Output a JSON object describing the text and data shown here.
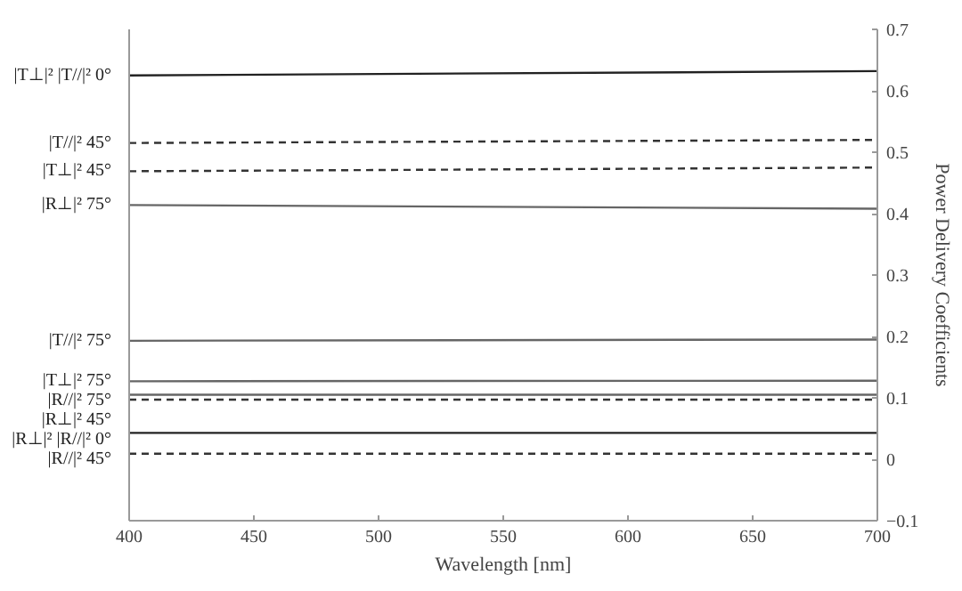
{
  "chart_data": {
    "type": "line",
    "xlabel": "Wavelength [nm]",
    "ylabel": "Power Delivery Coefficients",
    "x": [
      400,
      700
    ],
    "xlim": [
      400,
      700
    ],
    "xticks": [
      400,
      450,
      500,
      550,
      600,
      650,
      700
    ],
    "ylim": [
      -0.1,
      0.7
    ],
    "yticks": [
      -0.1,
      0,
      0.1,
      0.2,
      0.3,
      0.4,
      0.5,
      0.6,
      0.7
    ],
    "grid": false,
    "marker": "none",
    "series": [
      {
        "name": "|T⊥|² |T//|² 0°",
        "color": "#222222",
        "values": [
          0.625,
          0.632
        ],
        "line_style": "solid"
      },
      {
        "name": "|T//|² 45°",
        "color": "#333333",
        "values": [
          0.515,
          0.52
        ],
        "line_style": "dashed"
      },
      {
        "name": "|T⊥|² 45°",
        "color": "#333333",
        "values": [
          0.469,
          0.475
        ],
        "line_style": "dashed"
      },
      {
        "name": "|R⊥|² 75°",
        "color": "#666666",
        "values": [
          0.414,
          0.408
        ],
        "line_style": "solid"
      },
      {
        "name": "|T//|² 75°",
        "color": "#666666",
        "values": [
          0.193,
          0.195
        ],
        "line_style": "solid"
      },
      {
        "name": "|T⊥|² 75°",
        "color": "#666666",
        "values": [
          0.127,
          0.128
        ],
        "line_style": "solid"
      },
      {
        "name": "|R//|² 75°",
        "color": "#666666",
        "values": [
          0.105,
          0.105
        ],
        "line_style": "solid"
      },
      {
        "name": "|R⊥|² 45°",
        "color": "#333333",
        "values": [
          0.097,
          0.097
        ],
        "line_style": "dashed"
      },
      {
        "name": "|R⊥|² |R//|² 0°",
        "color": "#222222",
        "values": [
          0.043,
          0.043
        ],
        "line_style": "solid"
      },
      {
        "name": "|R//|² 45°",
        "color": "#333333",
        "values": [
          0.009,
          0.009
        ],
        "line_style": "dashed"
      }
    ]
  }
}
